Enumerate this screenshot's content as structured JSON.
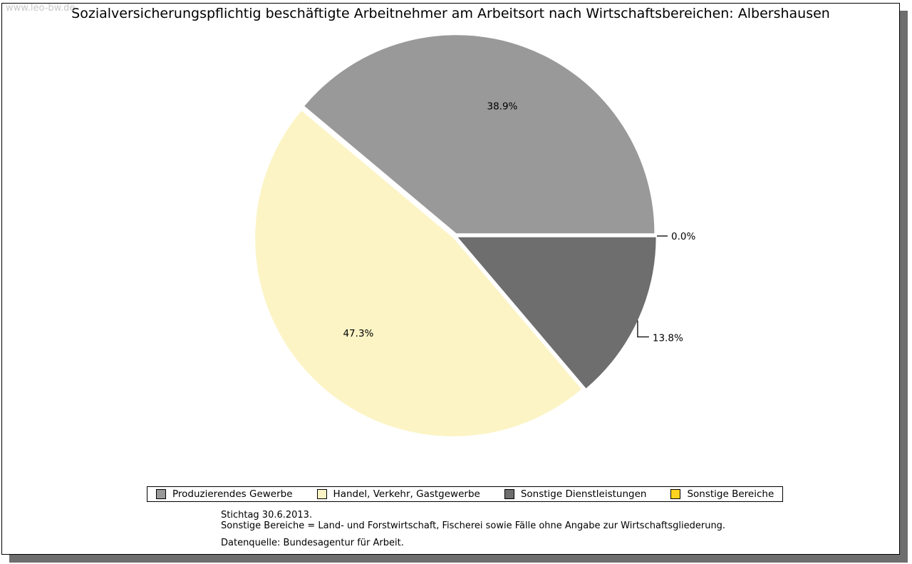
{
  "watermark": "www.leo-bw.de",
  "title": "Sozialversicherungspflichtig beschäftigte Arbeitnehmer am Arbeitsort nach Wirtschaftsbereichen: Albershausen",
  "chart_data": {
    "type": "pie",
    "title": "Sozialversicherungspflichtig beschäftigte Arbeitnehmer am Arbeitsort nach Wirtschaftsbereichen: Albershausen",
    "unit": "%",
    "start_angle_deg": 0,
    "direction": "counterclockwise",
    "exploded": true,
    "legend_position": "bottom",
    "slices": [
      {
        "label": "Produzierendes Gewerbe",
        "value": 38.9,
        "label_text": "38.9%",
        "color": "#999999",
        "label_placement": "inside"
      },
      {
        "label": "Handel, Verkehr, Gastgewerbe",
        "value": 47.3,
        "label_text": "47.3%",
        "color": "#FCF4C5",
        "label_placement": "inside"
      },
      {
        "label": "Sonstige Dienstleistungen",
        "value": 13.8,
        "label_text": "13.8%",
        "color": "#6E6E6E",
        "label_placement": "outside-elbow"
      },
      {
        "label": "Sonstige Bereiche",
        "value": 0.0,
        "label_text": "0.0%",
        "color": "#FFD320",
        "label_placement": "outside-dash"
      }
    ]
  },
  "footnotes": [
    "Stichtag 30.6.2013.",
    "Sonstige Bereiche = Land- und Forstwirtschaft, Fischerei sowie Fälle ohne Angabe zur Wirtschaftsgliederung.",
    "Datenquelle: Bundesagentur für Arbeit."
  ],
  "colors": {
    "frame_border": "#000000",
    "frame_shadow": "#6E6E6E",
    "background": "#FFFFFF",
    "watermark": "#C8C8C8"
  }
}
